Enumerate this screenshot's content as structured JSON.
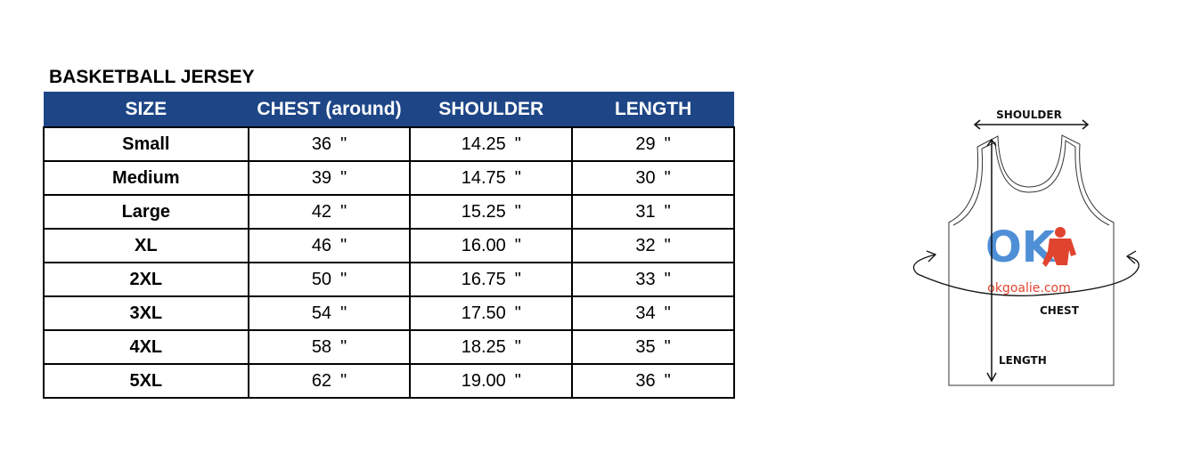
{
  "title": "BASKETBALL JERSEY",
  "headers": [
    "SIZE",
    "CHEST (around)",
    "SHOULDER",
    "LENGTH"
  ],
  "unit_mark": "\"",
  "header_color": "#1e4687",
  "rows": [
    {
      "size": "Small",
      "chest": "36",
      "shoulder": "14.25",
      "length": "29"
    },
    {
      "size": "Medium",
      "chest": "39",
      "shoulder": "14.75",
      "length": "30"
    },
    {
      "size": "Large",
      "chest": "42",
      "shoulder": "15.25",
      "length": "31"
    },
    {
      "size": "XL",
      "chest": "46",
      "shoulder": "16.00",
      "length": "32"
    },
    {
      "size": "2XL",
      "chest": "50",
      "shoulder": "16.75",
      "length": "33"
    },
    {
      "size": "3XL",
      "chest": "54",
      "shoulder": "17.50",
      "length": "34"
    },
    {
      "size": "4XL",
      "chest": "58",
      "shoulder": "18.25",
      "length": "35"
    },
    {
      "size": "5XL",
      "chest": "62",
      "shoulder": "19.00",
      "length": "36"
    }
  ],
  "diagram": {
    "shoulder_label": "SHOULDER",
    "chest_label": "CHEST",
    "length_label": "LENGTH",
    "logo_text": "OK",
    "logo_url_text": "okgoalie.com",
    "logo_blue": "#4f8fd6",
    "logo_red": "#e0442f"
  }
}
